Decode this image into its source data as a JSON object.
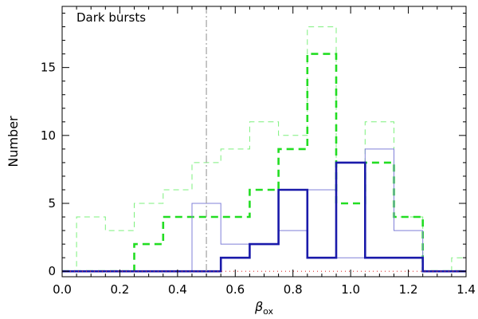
{
  "chart_data": {
    "type": "histogram",
    "title": "",
    "annotation": "Dark bursts",
    "xlabel": "β",
    "xlabel_sub": "ox",
    "ylabel": "Number",
    "xlim": [
      0.0,
      1.4
    ],
    "ylim": [
      -0.4,
      19.5
    ],
    "xticks": [
      0.0,
      0.2,
      0.4,
      0.6,
      0.8,
      1.0,
      1.2,
      1.4
    ],
    "xtick_labels": [
      "0.0",
      "0.2",
      "0.4",
      "0.6",
      "0.8",
      "1.0",
      "1.2",
      "1.4"
    ],
    "yticks": [
      0,
      5,
      10,
      15
    ],
    "ytick_labels": [
      "0",
      "5",
      "10",
      "15"
    ],
    "grid": false,
    "vertical_line": {
      "x": 0.5,
      "style": "dash-dot",
      "color": "#a0a0a0"
    },
    "bin_edges": [
      0.0,
      0.05,
      0.15,
      0.25,
      0.35,
      0.45,
      0.55,
      0.65,
      0.75,
      0.85,
      0.95,
      1.05,
      1.15,
      1.25,
      1.35,
      1.4
    ],
    "series": [
      {
        "color": "#7cf07c",
        "style": "thin-dashed",
        "values": [
          0,
          4,
          3,
          5,
          6,
          8,
          9,
          11,
          10,
          18,
          8,
          11,
          4,
          0,
          1
        ]
      },
      {
        "color": "#22dd22",
        "style": "thick-dashed",
        "values": [
          0,
          0,
          0,
          2,
          4,
          4,
          4,
          6,
          9,
          16,
          5,
          8,
          4,
          0,
          0
        ]
      },
      {
        "color": "#8080d8",
        "style": "thin-solid",
        "values": [
          0,
          0,
          0,
          0,
          0,
          5,
          2,
          2,
          3,
          6,
          1,
          9,
          3,
          0,
          0
        ]
      },
      {
        "color": "#1a1aaa",
        "style": "thick-solid",
        "values": [
          0,
          0,
          0,
          0,
          0,
          0,
          1,
          2,
          6,
          1,
          8,
          1,
          1,
          0,
          0
        ]
      },
      {
        "color": "#e03030",
        "style": "dotted",
        "values": [
          0,
          0,
          0,
          0,
          0,
          0,
          0,
          0,
          0,
          0,
          0,
          0,
          0,
          0,
          0
        ]
      }
    ]
  }
}
